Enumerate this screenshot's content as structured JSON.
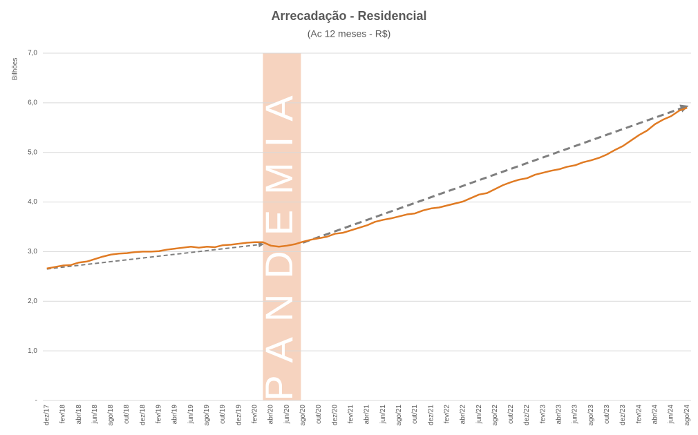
{
  "chart_data": {
    "type": "line",
    "title": "Arrecadação - Residencial",
    "subtitle": "(Ac 12 meses - R$)",
    "y_label": "Bilhões",
    "categories": [
      "dez/17",
      null,
      "fev/18",
      null,
      "abr/18",
      null,
      "jun/18",
      null,
      "ago/18",
      null,
      "out/18",
      null,
      "dez/18",
      null,
      "fev/19",
      null,
      "abr/19",
      null,
      "jun/19",
      null,
      "ago/19",
      null,
      "out/19",
      null,
      "dez/19",
      null,
      "fev/20",
      null,
      "abr/20",
      null,
      "jun/20",
      null,
      "ago/20",
      null,
      "out/20",
      null,
      "dez/20",
      null,
      "fev/21",
      null,
      "abr/21",
      null,
      "jun/21",
      null,
      "ago/21",
      null,
      "out/21",
      null,
      "dez/21",
      null,
      "fev/22",
      null,
      "abr/22",
      null,
      "jun/22",
      null,
      "ago/22",
      null,
      "out/22",
      null,
      "dez/22",
      null,
      "fev/23",
      null,
      "abr/23",
      null,
      "jun/23",
      null,
      "ago/23",
      null,
      "out/23",
      null,
      "dez/23",
      null,
      "fev/24",
      null,
      "abr/24",
      null,
      "jun/24",
      null,
      "ago/24"
    ],
    "series": [
      {
        "color": "#e07b24",
        "values": [
          2.66,
          2.69,
          2.72,
          2.73,
          2.78,
          2.8,
          2.85,
          2.9,
          2.94,
          2.96,
          2.97,
          2.99,
          3.0,
          3.0,
          3.01,
          3.04,
          3.06,
          3.08,
          3.1,
          3.08,
          3.1,
          3.09,
          3.13,
          3.14,
          3.16,
          3.18,
          3.19,
          3.19,
          3.12,
          3.1,
          3.12,
          3.15,
          3.2,
          3.24,
          3.27,
          3.3,
          3.36,
          3.38,
          3.43,
          3.48,
          3.53,
          3.6,
          3.64,
          3.67,
          3.71,
          3.75,
          3.77,
          3.83,
          3.87,
          3.89,
          3.93,
          3.97,
          4.01,
          4.08,
          4.15,
          4.18,
          4.26,
          4.34,
          4.4,
          4.45,
          4.48,
          4.55,
          4.59,
          4.63,
          4.66,
          4.71,
          4.74,
          4.8,
          4.84,
          4.89,
          4.96,
          5.05,
          5.13,
          5.24,
          5.35,
          5.44,
          5.57,
          5.66,
          5.73,
          5.84,
          5.9
        ]
      }
    ],
    "shaded_region": {
      "label": "PANDEMIA",
      "color": "#f6d3bf",
      "x": [
        27,
        31.75
      ]
    },
    "trends": [
      {
        "color": "#7f7f7f",
        "x": [
          0,
          27
        ],
        "y": [
          2.65,
          3.15
        ]
      },
      {
        "color": "#7f7f7f",
        "x": [
          32,
          80
        ],
        "y": [
          3.18,
          5.93
        ]
      }
    ],
    "ylim": [
      0,
      7
    ],
    "yticks": [
      {
        "value": 0,
        "label": "-"
      },
      {
        "value": 1,
        "label": "1,0"
      },
      {
        "value": 2,
        "label": "2,0"
      },
      {
        "value": 3,
        "label": "3,0"
      },
      {
        "value": 4,
        "label": "4,0"
      },
      {
        "value": 5,
        "label": "5,0"
      },
      {
        "value": 6,
        "label": "6,0"
      },
      {
        "value": 7,
        "label": "7,0"
      }
    ],
    "grid": true
  }
}
